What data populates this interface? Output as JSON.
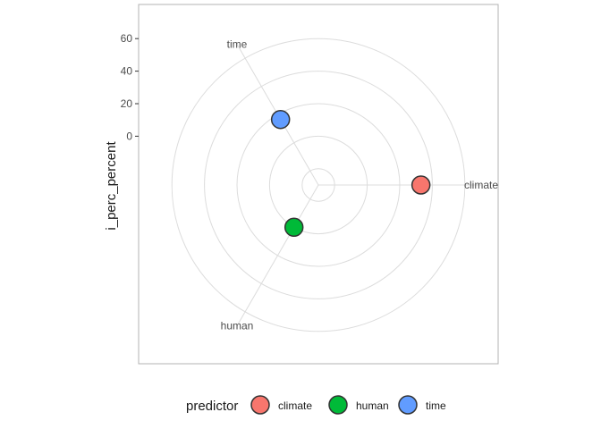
{
  "chart_data": {
    "type": "scatter",
    "coordinate_system": "polar",
    "title": "",
    "ylabel": "i_perc_percent",
    "xlabel": "",
    "angular_categories": [
      "climate",
      "human",
      "time"
    ],
    "ylim": [
      -30,
      70
    ],
    "yticks": [
      0,
      20,
      40,
      60
    ],
    "grid_circles": [
      -20,
      0,
      20,
      40,
      60
    ],
    "points": [
      {
        "predictor": "climate",
        "value": 33
      },
      {
        "predictor": "human",
        "value": 0
      },
      {
        "predictor": "time",
        "value": 16.5
      }
    ],
    "legend": {
      "title": "predictor",
      "position": "bottom",
      "entries": [
        "climate",
        "human",
        "time"
      ]
    },
    "colors": {
      "climate": "#F8766D",
      "human": "#00BA38",
      "time": "#619CFF",
      "point_outline": "#333333",
      "grid": "#dcdcdc",
      "panel_border": "#b3b3b3"
    }
  }
}
